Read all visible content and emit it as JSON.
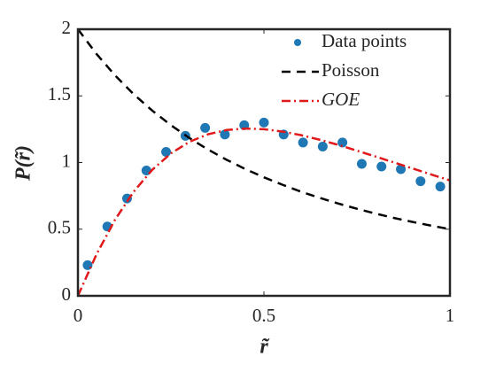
{
  "chart_data": {
    "type": "scatter",
    "x_label": "r̃",
    "y_label": "P(r̃)",
    "xlim": [
      0,
      1
    ],
    "ylim": [
      0,
      2
    ],
    "xticks": [
      0,
      0.5,
      1
    ],
    "yticks": [
      0,
      0.5,
      1,
      1.5,
      2
    ],
    "legend": "upper right",
    "series": [
      {
        "name": "Data points",
        "type": "scatter",
        "color": "#1f77b4",
        "x": [
          0.026,
          0.079,
          0.132,
          0.184,
          0.237,
          0.289,
          0.342,
          0.395,
          0.447,
          0.5,
          0.553,
          0.605,
          0.658,
          0.711,
          0.763,
          0.816,
          0.868,
          0.921,
          0.974
        ],
        "values": [
          0.23,
          0.52,
          0.73,
          0.94,
          1.08,
          1.2,
          1.26,
          1.21,
          1.28,
          1.3,
          1.21,
          1.15,
          1.12,
          1.15,
          0.99,
          0.97,
          0.95,
          0.86,
          0.82
        ]
      },
      {
        "name": "Poisson",
        "type": "line",
        "dash": "10,7",
        "color": "#000000",
        "x": [
          0,
          0.05,
          0.1,
          0.15,
          0.2,
          0.25,
          0.3,
          0.35,
          0.4,
          0.45,
          0.5,
          0.55,
          0.6,
          0.65,
          0.7,
          0.75,
          0.8,
          0.85,
          0.9,
          0.95,
          1
        ],
        "values": [
          2,
          1.814,
          1.653,
          1.512,
          1.389,
          1.28,
          1.183,
          1.097,
          1.02,
          0.951,
          0.889,
          0.833,
          0.781,
          0.735,
          0.692,
          0.653,
          0.617,
          0.584,
          0.554,
          0.526,
          0.5
        ]
      },
      {
        "name": "GOE",
        "type": "line",
        "dash": "10,4,2,4",
        "italic": true,
        "color": "#e0191b",
        "x": [
          0,
          0.05,
          0.1,
          0.15,
          0.2,
          0.25,
          0.3,
          0.35,
          0.4,
          0.45,
          0.5,
          0.55,
          0.6,
          0.65,
          0.7,
          0.75,
          0.8,
          0.85,
          0.9,
          0.95,
          1
        ],
        "values": [
          0,
          0.312,
          0.572,
          0.782,
          0.946,
          1.069,
          1.156,
          1.212,
          1.244,
          1.255,
          1.25,
          1.232,
          1.205,
          1.171,
          1.132,
          1.089,
          1.045,
          1.0,
          0.955,
          0.91,
          0.866
        ]
      }
    ]
  }
}
